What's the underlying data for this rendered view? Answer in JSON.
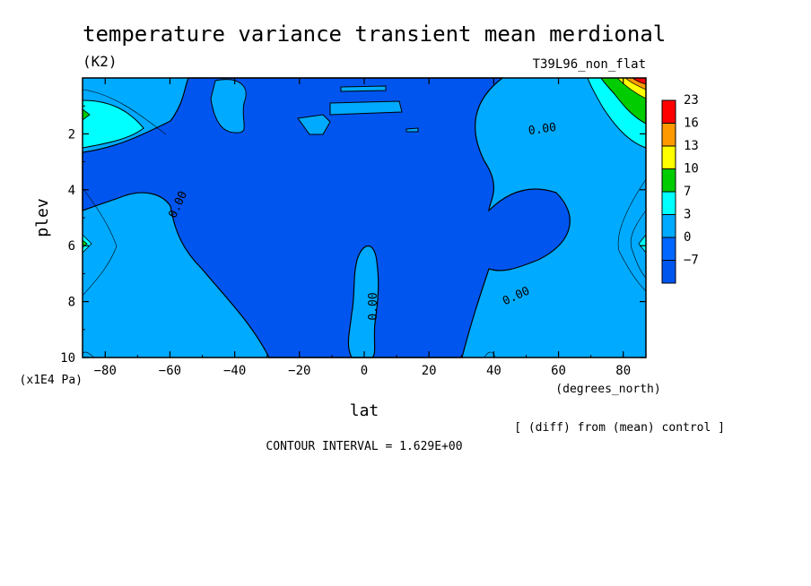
{
  "header": {
    "title": "temperature variance transient mean merdional",
    "units": "(K2)",
    "experiment": "T39L96_non_flat"
  },
  "footer": {
    "diff_note": "[ (diff) from (mean) control ]",
    "contour_interval": "CONTOUR INTERVAL = 1.629E+00"
  },
  "chart_data": {
    "type": "heatmap",
    "title": "temperature variance transient mean merdional",
    "xlabel": "lat",
    "xunits": "(degrees_north)",
    "ylabel": "plev",
    "yunits": "(x1E4 Pa)",
    "xlim": [
      -87,
      87
    ],
    "ylim": [
      10,
      0
    ],
    "xticks": [
      "-80",
      "-60",
      "-40",
      "-20",
      "0",
      "20",
      "40",
      "60",
      "80"
    ],
    "yticks": [
      "2",
      "4",
      "6",
      "8",
      "10"
    ],
    "grid": false,
    "contour_labels": [
      "0.00",
      "0.00",
      "0.00",
      "0.00"
    ],
    "colorbar": {
      "labels": [
        "23",
        "16",
        "13",
        "10",
        "7",
        "3",
        "0",
        "-7"
      ],
      "colors": [
        "#ff0000",
        "#ff9900",
        "#ffff00",
        "#00cc00",
        "#00ffff",
        "#00aaff",
        "#0066ff",
        "#0055ee"
      ]
    }
  }
}
